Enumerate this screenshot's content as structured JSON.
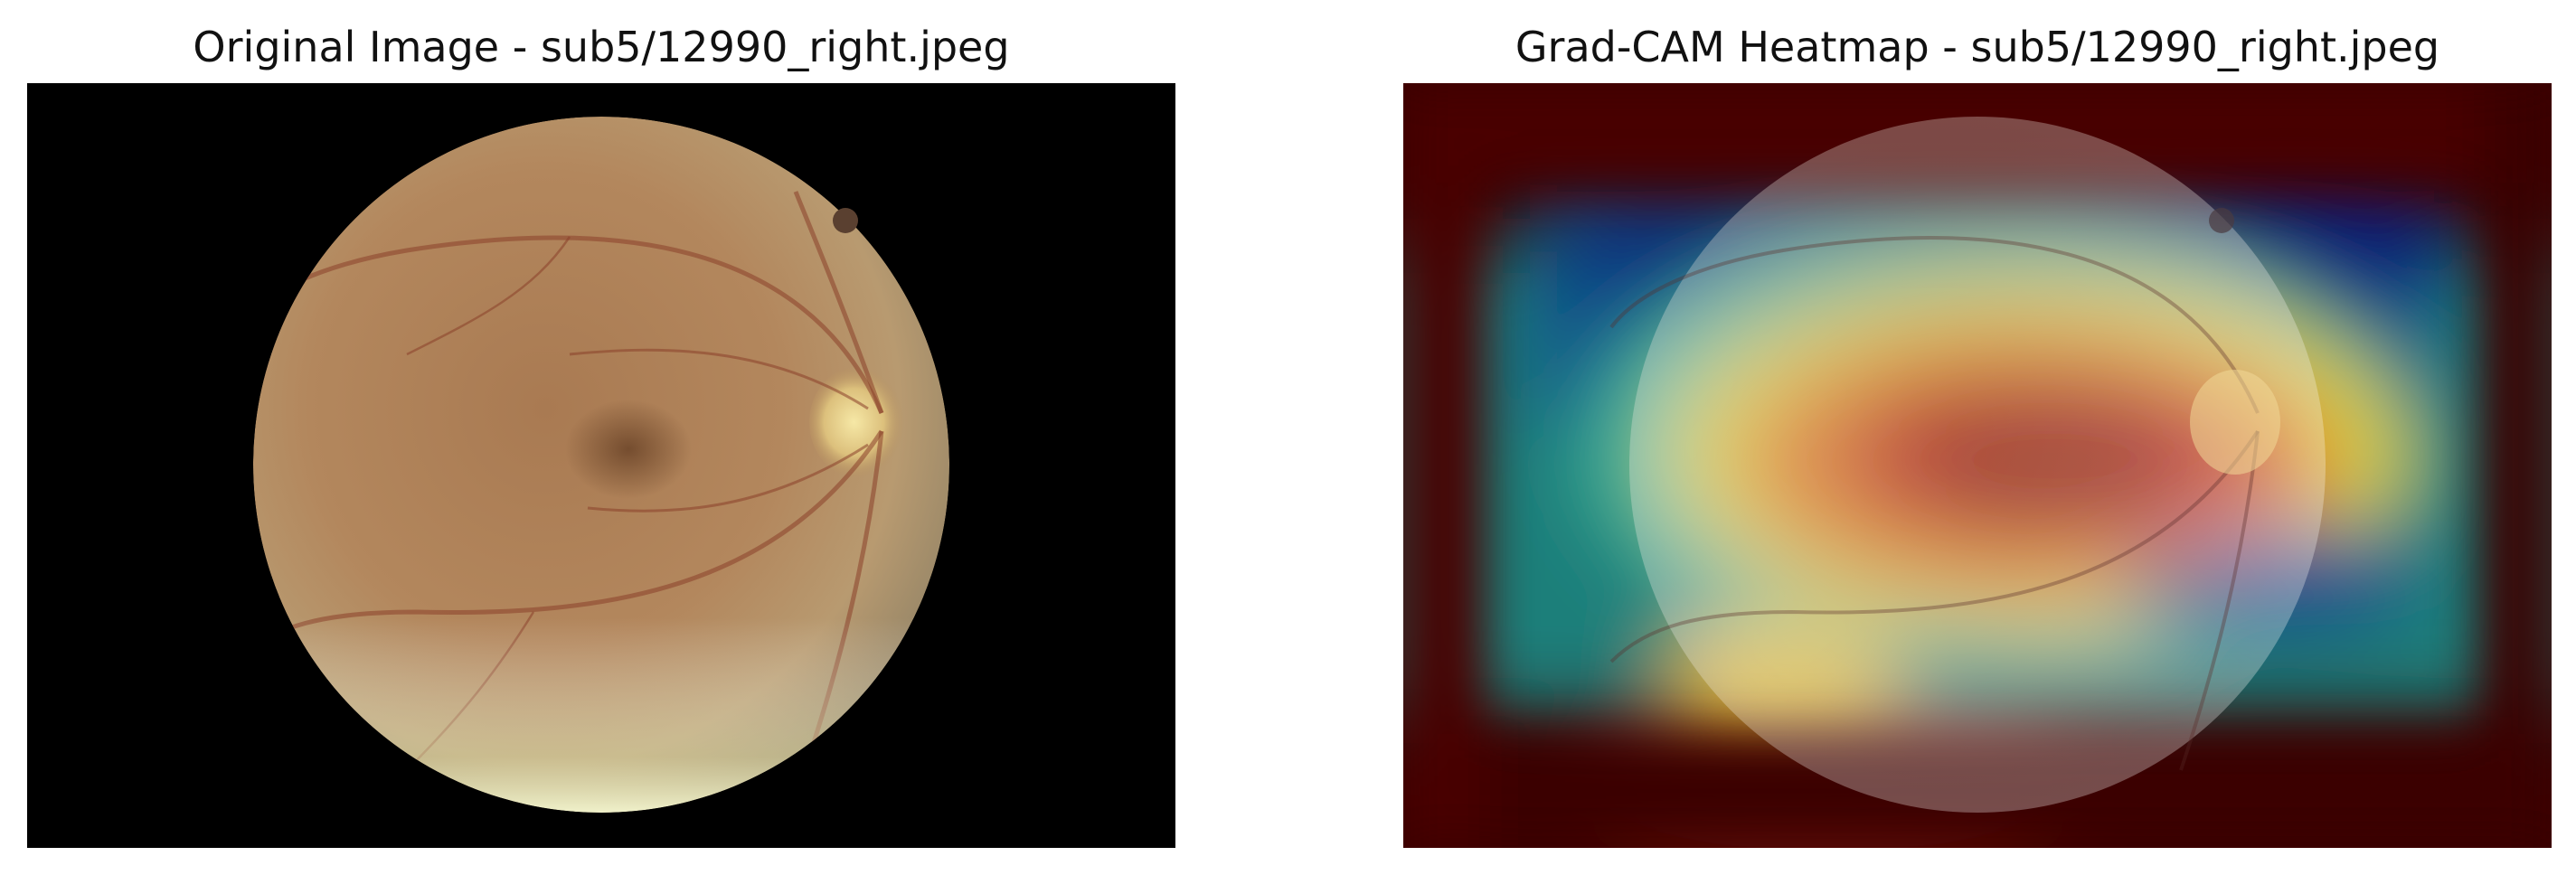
{
  "figure": {
    "panels": [
      {
        "title": "Original Image - sub5/12990_right.jpeg",
        "content": "fundus photograph"
      },
      {
        "title": "Grad-CAM Heatmap - sub5/12990_right.jpeg",
        "content": "heatmap overlay",
        "colormap": "jet"
      }
    ]
  },
  "colors": {
    "background": "#000000",
    "fundus": "#b0825a",
    "heat_high": "#b01010",
    "heat_mid": "#f0d040",
    "heat_low": "#102a8a",
    "heat_edge": "#3a0000"
  }
}
